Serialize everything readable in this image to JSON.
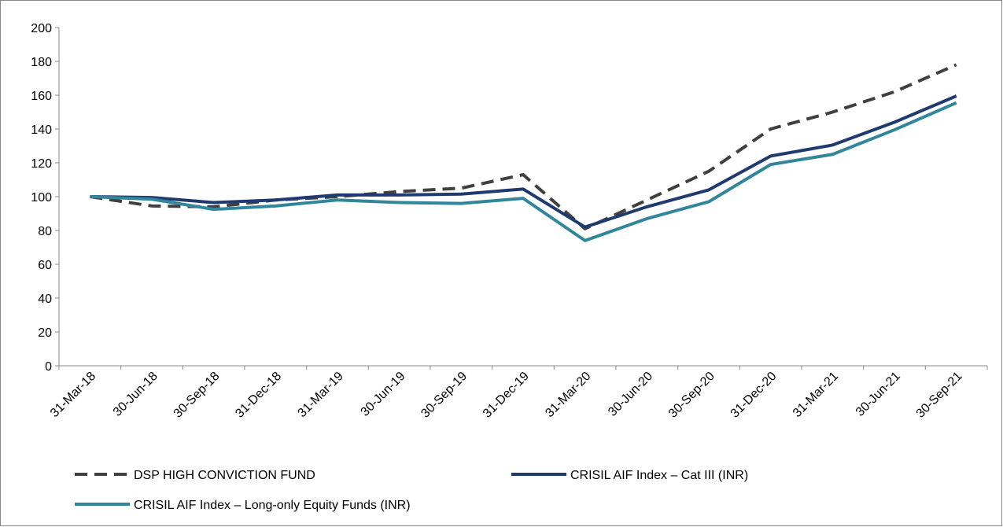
{
  "chart_data": {
    "type": "line",
    "categories": [
      "31-Mar-18",
      "30-Jun-18",
      "30-Sep-18",
      "31-Dec-18",
      "31-Mar-19",
      "30-Jun-19",
      "30-Sep-19",
      "31-Dec-19",
      "31-Mar-20",
      "30-Jun-20",
      "30-Sep-20",
      "31-Dec-20",
      "31-Mar-21",
      "30-Jun-21",
      "30-Sep-21"
    ],
    "series": [
      {
        "name": "DSP HIGH CONVICTION FUND",
        "color": "#404040",
        "dashed": true,
        "values": [
          100,
          94.5,
          94,
          98,
          100,
          103,
          105,
          113,
          81,
          98,
          115,
          140,
          150,
          162,
          178
        ]
      },
      {
        "name": "CRISIL AIF Index – Cat III (INR)",
        "color": "#1f3a6e",
        "values": [
          100,
          99.5,
          96.5,
          98,
          101,
          101,
          101.5,
          104.5,
          82,
          94,
          104,
          124,
          130.5,
          144,
          159.5
        ]
      },
      {
        "name": "CRISIL AIF Index – Long-only Equity Funds (INR)",
        "color": "#31869b",
        "values": [
          100,
          98.5,
          92.5,
          94.5,
          98,
          96.5,
          96,
          99,
          74,
          87,
          97,
          119,
          125,
          139.5,
          155.5
        ]
      }
    ],
    "ylim": [
      0,
      200
    ],
    "yticks": [
      0,
      20,
      40,
      60,
      80,
      100,
      120,
      140,
      160,
      180,
      200
    ]
  }
}
